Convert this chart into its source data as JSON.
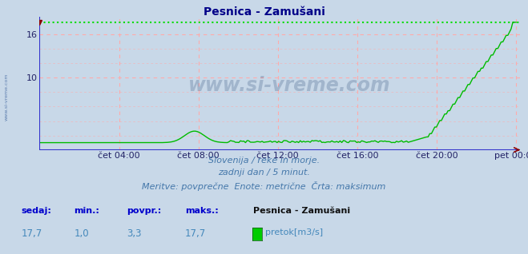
{
  "title": "Pesnica - Zamušani",
  "bg_color": "#c8d8e8",
  "plot_bg_color": "#c8d8e8",
  "line_color": "#00bb00",
  "max_line_color": "#00dd00",
  "spine_color": "#3333cc",
  "grid_color": "#ffaaaa",
  "yticks": [
    10,
    16
  ],
  "ytick_labels": [
    "10",
    "16"
  ],
  "xticklabels": [
    "čet 04:00",
    "čet 08:00",
    "čet 12:00",
    "čet 16:00",
    "čet 20:00",
    "pet 00:00"
  ],
  "subtitle1": "Slovenija / reke in morje.",
  "subtitle2": "zadnji dan / 5 minut.",
  "subtitle3": "Meritve: povprečne  Enote: metrične  Črta: maksimum",
  "footer_labels": [
    "sedaj:",
    "min.:",
    "povpr.:",
    "maks.:"
  ],
  "footer_values": [
    "17,7",
    "1,0",
    "3,3",
    "17,7"
  ],
  "footer_station": "Pesnica - Zamušani",
  "footer_legend": "pretok[m3/s]",
  "legend_color": "#00cc00",
  "watermark": "www.si-vreme.com",
  "max_value": 17.7,
  "ylim_top": 18.5,
  "xlim": [
    0,
    24
  ],
  "tick_positions": [
    4,
    8,
    12,
    16,
    20,
    24
  ]
}
